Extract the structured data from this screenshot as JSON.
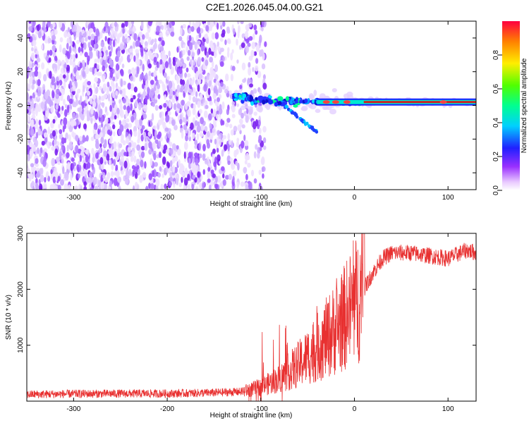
{
  "title": "C2E1.2026.045.04.00.G21",
  "colors": {
    "snr_line": "#e83030",
    "band_main": "#cc2020"
  },
  "chart_data": [
    {
      "type": "heatmap",
      "xlabel": "Height of straight line (km)",
      "ylabel": "Frequency (Hz)",
      "xlim": [
        -350,
        130
      ],
      "ylim": [
        -50,
        50
      ],
      "x_ticks": [
        "-300",
        "-200",
        "-100",
        "0",
        "100"
      ],
      "x_tick_values": [
        -300,
        -200,
        -100,
        0,
        100
      ],
      "y_ticks": [
        "-40",
        "-20",
        "0",
        "20",
        "40"
      ],
      "y_tick_values": [
        -40,
        -20,
        0,
        20,
        40
      ],
      "colorbar": {
        "label": "Normalized spectral amplitude",
        "range": [
          0,
          1
        ],
        "ticks": [
          "0.0",
          "0.2",
          "0.4",
          "0.6",
          "0.8"
        ],
        "tick_values": [
          0.0,
          0.2,
          0.4,
          0.6,
          0.8
        ]
      },
      "features": {
        "noise_region_x": [
          -350,
          -110
        ],
        "signal_start_x": -130,
        "center_line_frequency": 2,
        "tail_end": {
          "x": -40,
          "freq": -16
        }
      }
    },
    {
      "type": "line",
      "xlabel": "Height of straight line (km)",
      "ylabel": "SNR (10 * v/v)",
      "xlim": [
        -350,
        130
      ],
      "ylim": [
        0,
        3000
      ],
      "x_ticks": [
        "-300",
        "-200",
        "-100",
        "0",
        "100"
      ],
      "x_tick_values": [
        -300,
        -200,
        -100,
        0,
        100
      ],
      "y_ticks": [
        "1000",
        "2000",
        "3000"
      ],
      "y_tick_values": [
        1000,
        2000,
        3000
      ],
      "series": [
        {
          "name": "SNR",
          "x": [
            -350,
            -300,
            -250,
            -200,
            -150,
            -120,
            -100,
            -80,
            -60,
            -40,
            -20,
            -10,
            0,
            10,
            20,
            30,
            40,
            60,
            80,
            100,
            120,
            130
          ],
          "values": [
            120,
            130,
            135,
            135,
            150,
            170,
            250,
            400,
            650,
            950,
            1300,
            1500,
            1750,
            2000,
            2300,
            2550,
            2650,
            2650,
            2600,
            2550,
            2700,
            2650
          ]
        }
      ]
    }
  ]
}
